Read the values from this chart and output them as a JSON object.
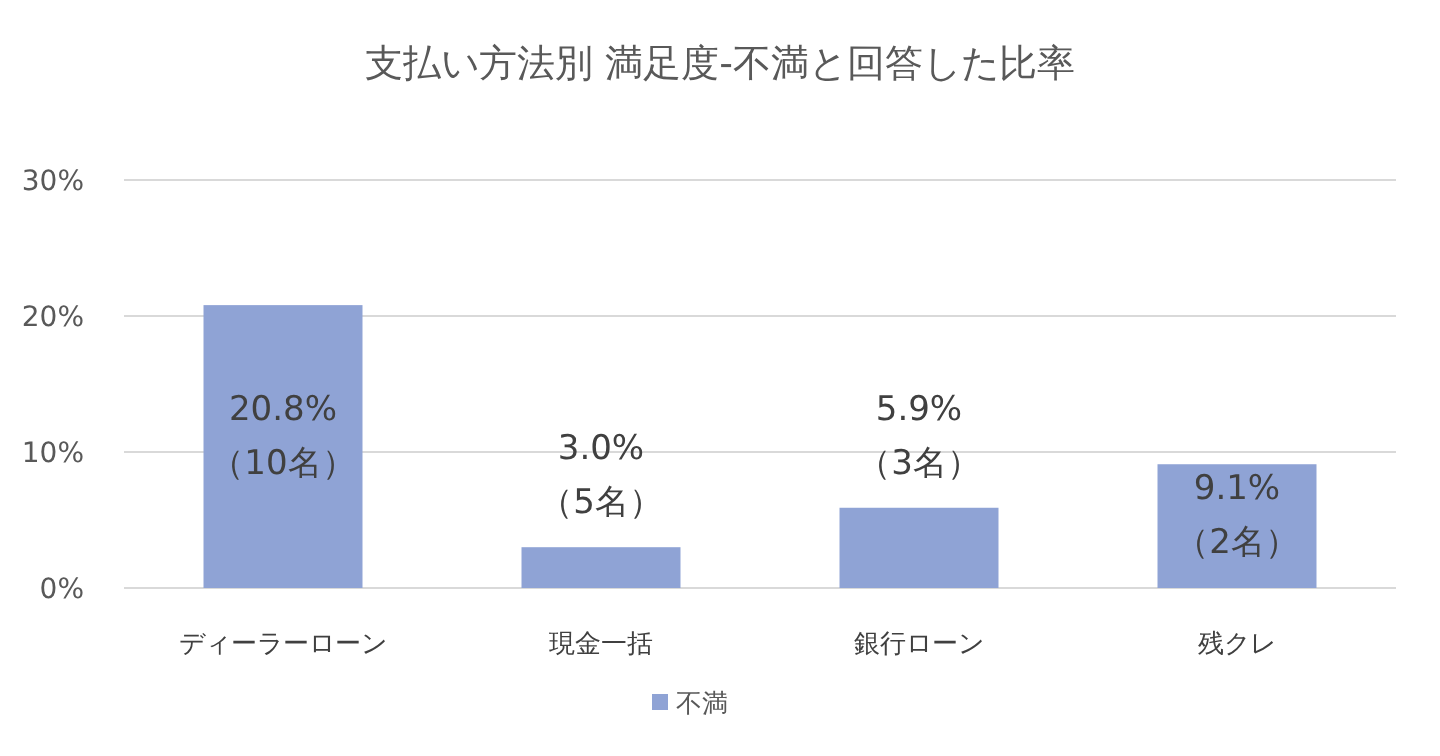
{
  "chart_data": {
    "type": "bar",
    "title": "支払い方法別 満足度-不満と回答した比率",
    "categories": [
      "ディーラーローン",
      "現金一括",
      "銀行ローン",
      "残クレ"
    ],
    "series": [
      {
        "name": "不満",
        "color": "#8fa3d5",
        "values": [
          20.8,
          3.0,
          5.9,
          9.1
        ],
        "value_labels": [
          "20.8%\n（10名）",
          "3.0%\n（5名）",
          "5.9%\n（3名）",
          "9.1%\n（2名）"
        ]
      }
    ],
    "ylim": [
      0,
      30
    ],
    "yticks": [
      {
        "value": 0,
        "label": "0%"
      },
      {
        "value": 10,
        "label": "10%"
      },
      {
        "value": 20,
        "label": "20%"
      },
      {
        "value": 30,
        "label": "30%"
      }
    ],
    "grid": "y",
    "legend": "bottom"
  }
}
